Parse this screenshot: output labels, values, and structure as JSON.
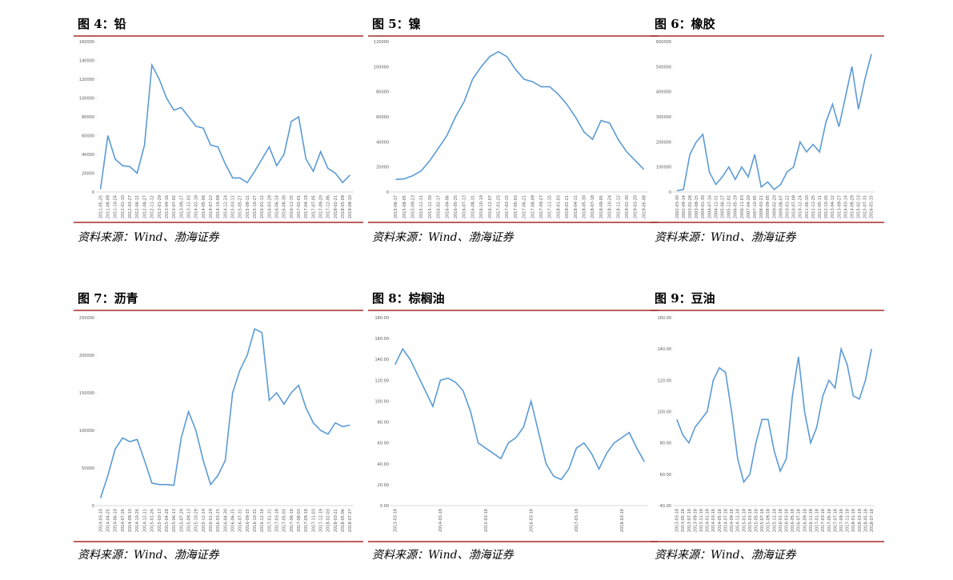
{
  "chart_data": [
    {
      "type": "line",
      "title": "图 4：铅",
      "source": "资料来源：Wind、渤海证券",
      "color": "#5b9bd5",
      "categories": [
        "2011-05-25",
        "2011-08-09",
        "2011-10-24",
        "2012-01-10",
        "2012-03-27",
        "2012-06-12",
        "2012-08-27",
        "2012-11-12",
        "2013-01-29",
        "2013-04-16",
        "2013-07-02",
        "2013-09-17",
        "2013-12-03",
        "2014-02-18",
        "2014-05-06",
        "2014-07-22",
        "2014-10-08",
        "2014-12-24",
        "2015-03-11",
        "2015-05-27",
        "2015-08-11",
        "2015-10-27",
        "2016-01-12",
        "2016-03-29",
        "2016-06-14",
        "2016-08-30",
        "2016-11-15",
        "2017-02-01",
        "2017-04-19",
        "2017-07-05",
        "2017-09-20",
        "2017-12-06",
        "2018-02-21",
        "2018-05-09",
        "2018-08-10"
      ],
      "values": [
        3000,
        60000,
        35000,
        28000,
        27000,
        20000,
        50000,
        135000,
        120000,
        100000,
        87000,
        90000,
        80000,
        70000,
        68000,
        50000,
        48000,
        30000,
        15000,
        15000,
        10000,
        22000,
        35000,
        48000,
        28000,
        40000,
        75000,
        80000,
        35000,
        22000,
        43000,
        25000,
        20000,
        10000,
        18000
      ],
      "ylim": [
        0,
        160000
      ],
      "yticks": [
        0,
        20000,
        40000,
        60000,
        80000,
        100000,
        120000,
        140000,
        160000
      ]
    },
    {
      "type": "line",
      "title": "图 5：镍",
      "source": "资料来源：Wind、渤海证券",
      "color": "#5b9bd5",
      "categories": [
        "2015-06-17",
        "2015-08-05",
        "2015-09-23",
        "2015-11-11",
        "2015-12-30",
        "2016-02-17",
        "2016-04-06",
        "2016-05-25",
        "2016-07-13",
        "2016-08-31",
        "2016-10-19",
        "2016-12-07",
        "2017-01-25",
        "2017-03-15",
        "2017-05-03",
        "2017-06-21",
        "2017-08-09",
        "2017-09-27",
        "2017-11-15",
        "2018-01-03",
        "2018-02-21",
        "2018-04-11",
        "2018-05-30",
        "2018-07-18",
        "2018-09-05",
        "2018-10-24",
        "2018-12-12",
        "2019-01-30",
        "2019-03-20",
        "2019-05-08"
      ],
      "values": [
        10000,
        10500,
        13000,
        17000,
        25000,
        35000,
        45000,
        60000,
        72000,
        90000,
        100000,
        108000,
        112000,
        108000,
        98000,
        90000,
        88000,
        84000,
        84000,
        78000,
        70000,
        60000,
        48000,
        42000,
        57000,
        55000,
        42000,
        32000,
        25000,
        18000
      ],
      "ylim": [
        0,
        120000
      ],
      "yticks": [
        0,
        20000,
        40000,
        60000,
        80000,
        100000,
        120000
      ]
    },
    {
      "type": "line",
      "title": "图 6：橡胶",
      "source": "资料来源：Wind、渤海证券",
      "color": "#5b9bd5",
      "categories": [
        "2002-03-30",
        "2002-09-14",
        "2003-02-28",
        "2003-08-15",
        "2004-01-30",
        "2004-07-16",
        "2004-12-31",
        "2005-06-17",
        "2005-12-02",
        "2006-05-19",
        "2006-11-03",
        "2007-04-20",
        "2007-10-05",
        "2008-03-21",
        "2008-09-05",
        "2009-02-20",
        "2009-08-07",
        "2010-01-22",
        "2010-07-09",
        "2010-12-24",
        "2011-06-10",
        "2011-11-25",
        "2012-05-11",
        "2012-10-26",
        "2013-04-12",
        "2013-09-27",
        "2014-03-14",
        "2014-08-29",
        "2015-02-13",
        "2015-07-31",
        "2016-01-15"
      ],
      "values": [
        5000,
        10000,
        150000,
        200000,
        230000,
        80000,
        30000,
        60000,
        100000,
        50000,
        100000,
        60000,
        150000,
        20000,
        40000,
        10000,
        30000,
        80000,
        100000,
        200000,
        160000,
        190000,
        160000,
        280000,
        350000,
        260000,
        380000,
        500000,
        330000,
        450000,
        550000
      ],
      "ylim": [
        0,
        600000
      ],
      "yticks": [
        0,
        100000,
        200000,
        300000,
        400000,
        500000,
        600000
      ]
    },
    {
      "type": "line",
      "title": "图 7：沥青",
      "source": "资料来源：Wind、渤海证券",
      "color": "#5b9bd5",
      "categories": [
        "2014-03-10",
        "2014-04-25",
        "2014-06-10",
        "2014-07-26",
        "2014-09-10",
        "2014-10-26",
        "2014-12-11",
        "2015-01-26",
        "2015-03-13",
        "2015-04-28",
        "2015-06-13",
        "2015-07-29",
        "2015-09-13",
        "2015-10-29",
        "2015-12-14",
        "2016-01-29",
        "2016-03-15",
        "2016-04-30",
        "2016-06-15",
        "2016-07-31",
        "2016-09-15",
        "2016-10-31",
        "2016-12-16",
        "2017-01-31",
        "2017-03-18",
        "2017-05-03",
        "2017-06-18",
        "2017-08-03",
        "2017-09-18",
        "2017-11-03",
        "2017-12-19",
        "2018-02-03",
        "2018-03-21",
        "2018-05-06",
        "2018-07-27"
      ],
      "values": [
        10000,
        40000,
        75000,
        90000,
        85000,
        88000,
        60000,
        30000,
        28000,
        28000,
        27000,
        90000,
        125000,
        100000,
        60000,
        28000,
        40000,
        60000,
        150000,
        180000,
        200000,
        235000,
        230000,
        140000,
        150000,
        135000,
        150000,
        160000,
        130000,
        110000,
        100000,
        95000,
        110000,
        105000,
        107000
      ],
      "ylim": [
        0,
        250000
      ],
      "yticks": [
        0,
        50000,
        100000,
        150000,
        200000,
        250000
      ]
    },
    {
      "type": "line",
      "title": "图 8：棕榈油",
      "source": "资料来源：Wind、渤海证券",
      "color": "#5b9bd5",
      "categories": [
        "2013-03-18",
        null,
        null,
        null,
        null,
        null,
        "2014-03-18",
        null,
        null,
        null,
        null,
        null,
        "2015-03-18",
        null,
        null,
        null,
        null,
        null,
        "2016-03-18",
        null,
        null,
        null,
        null,
        null,
        "2017-03-18",
        null,
        null,
        null,
        null,
        null,
        "2018-03-18",
        null,
        null,
        null
      ],
      "values": [
        135,
        150,
        140,
        125,
        110,
        95,
        120,
        122,
        118,
        110,
        90,
        60,
        55,
        50,
        45,
        60,
        65,
        75,
        100,
        70,
        40,
        28,
        25,
        35,
        55,
        60,
        50,
        35,
        50,
        60,
        65,
        70,
        55,
        42
      ],
      "ylim": [
        0,
        180
      ],
      "yticks": [
        {
          "value": 0,
          "label": "0.00"
        },
        {
          "value": 20,
          "label": "20.00"
        },
        {
          "value": 40,
          "label": "40.00"
        },
        {
          "value": 60,
          "label": "60.00"
        },
        {
          "value": 80,
          "label": "80.00"
        },
        {
          "value": 100,
          "label": "100.00"
        },
        {
          "value": 120,
          "label": "120.00"
        },
        {
          "value": 140,
          "label": "140.00"
        },
        {
          "value": 160,
          "label": "160.00"
        },
        {
          "value": 180,
          "label": "180.00"
        }
      ]
    },
    {
      "type": "line",
      "title": "图 9：豆油",
      "source": "资料来源：Wind、渤海证券",
      "color": "#5b9bd5",
      "categories": [
        "2013-03-18",
        "2013-05-18",
        "2013-07-18",
        "2013-09-18",
        "2013-11-18",
        "2014-01-18",
        "2014-03-18",
        "2014-05-18",
        "2014-07-18",
        "2014-09-18",
        "2014-11-18",
        "2015-01-18",
        "2015-03-18",
        "2015-05-18",
        "2015-07-18",
        "2015-09-18",
        "2015-11-18",
        "2016-01-18",
        "2016-03-18",
        "2016-05-18",
        "2016-07-18",
        "2016-09-18",
        "2016-11-18",
        "2017-01-18",
        "2017-03-18",
        "2017-05-18",
        "2017-07-18",
        "2017-09-18",
        "2017-11-18",
        "2018-01-18",
        "2018-03-18",
        "2018-05-18",
        "2018-07-18"
      ],
      "values": [
        95,
        85,
        80,
        90,
        95,
        100,
        120,
        128,
        125,
        100,
        70,
        55,
        60,
        80,
        95,
        95,
        75,
        62,
        70,
        110,
        135,
        100,
        80,
        90,
        110,
        120,
        115,
        140,
        130,
        110,
        108,
        120,
        140
      ],
      "ylim": [
        40,
        160
      ],
      "yticks": [
        {
          "value": 40,
          "label": "40.00"
        },
        {
          "value": 60,
          "label": "60.00"
        },
        {
          "value": 80,
          "label": "80.00"
        },
        {
          "value": 100,
          "label": "100.00"
        },
        {
          "value": 120,
          "label": "120.00"
        },
        {
          "value": 140,
          "label": "140.00"
        },
        {
          "value": 160,
          "label": "160.00"
        }
      ]
    }
  ]
}
